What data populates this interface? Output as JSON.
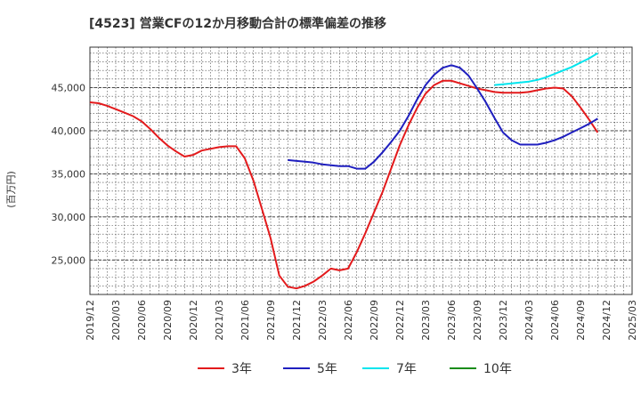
{
  "chart_data": {
    "type": "line",
    "title": "[4523]  営業CFの12か月移動合計の標準偏差の推移",
    "ylabel": "(百万円)",
    "xlabel": "",
    "ylim": [
      21000,
      49700
    ],
    "yticks": [
      25000,
      30000,
      35000,
      40000,
      45000
    ],
    "ytick_labels": [
      "25,000",
      "30,000",
      "35,000",
      "40,000",
      "45,000"
    ],
    "xticks": [
      "2019/12",
      "2020/03",
      "2020/06",
      "2020/09",
      "2020/12",
      "2021/03",
      "2021/06",
      "2021/09",
      "2021/12",
      "2022/03",
      "2022/06",
      "2022/09",
      "2022/12",
      "2023/03",
      "2023/06",
      "2023/09",
      "2023/12",
      "2024/03",
      "2024/06",
      "2024/09",
      "2024/12",
      "2025/03"
    ],
    "grid": true,
    "legend_position": "bottom",
    "series": [
      {
        "name": "3年",
        "color": "#e31a1c",
        "start": "2019/12",
        "values": [
          43300,
          43200,
          42900,
          42500,
          42100,
          41700,
          41100,
          40200,
          39200,
          38300,
          37600,
          37000,
          37200,
          37700,
          37900,
          38100,
          38200,
          38200,
          36800,
          34200,
          30900,
          27500,
          23200,
          21900,
          21700,
          22000,
          22500,
          23200,
          24000,
          23800,
          24000,
          25900,
          28100,
          30500,
          32900,
          35600,
          38300,
          40600,
          42600,
          44300,
          45300,
          45800,
          45800,
          45500,
          45200,
          44900,
          44700,
          44500,
          44400,
          44400,
          44400,
          44500,
          44700,
          44900,
          45000,
          44900,
          44000,
          42700,
          41300,
          39800
        ]
      },
      {
        "name": "5年",
        "color": "#1f1fbf",
        "start": "2021/11",
        "values": [
          36600,
          36500,
          36400,
          36300,
          36100,
          36000,
          35900,
          35900,
          35600,
          35600,
          36400,
          37500,
          38700,
          40000,
          41700,
          43600,
          45300,
          46500,
          47300,
          47600,
          47300,
          46400,
          44900,
          43300,
          41500,
          39800,
          38900,
          38400,
          38400,
          38400,
          38600,
          38900,
          39300,
          39800,
          40300,
          40800,
          41400
        ]
      },
      {
        "name": "7年",
        "color": "#00e5ee",
        "start": "2023/11",
        "values": [
          45300,
          45400,
          45500,
          45600,
          45700,
          45900,
          46200,
          46600,
          47000,
          47400,
          47900,
          48400,
          49000
        ]
      },
      {
        "name": "10年",
        "color": "#1a8c1a",
        "start": "2019/12",
        "values": []
      }
    ]
  }
}
